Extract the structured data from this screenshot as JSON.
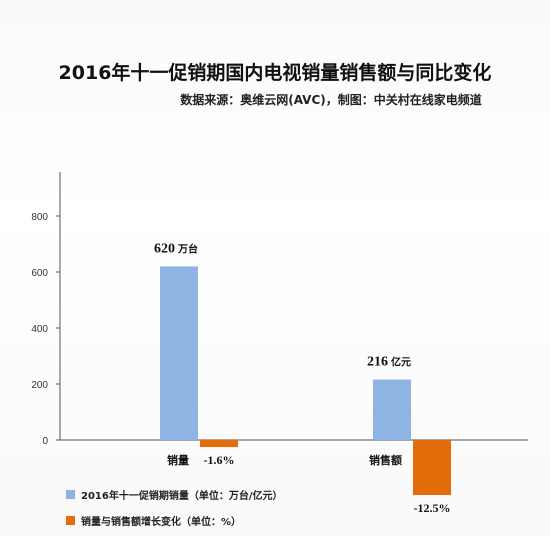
{
  "title": "2016年十一促销期国内电视销量销售额与同比变化",
  "subtitle": "数据来源：奥维云网(AVC)，制图：中关村在线家电频道",
  "chart_data": {
    "type": "bar",
    "categories": [
      "销量",
      "销售额"
    ],
    "ylim": [
      0,
      800
    ],
    "yticks": [
      "0",
      "200",
      "400",
      "600",
      "800"
    ],
    "series": [
      {
        "name": "2016年十一促销期销量（单位：万台/亿元）",
        "color": "#8eb4e3",
        "values": [
          620,
          216
        ],
        "value_labels": [
          "620",
          "216"
        ],
        "unit_labels": [
          "万台",
          "亿元"
        ]
      },
      {
        "name": "销量与销售额增长变化（单位：%）",
        "color": "#e46c0a",
        "values": [
          -1.6,
          -12.5
        ],
        "value_labels": [
          "-1.6%",
          "-12.5%"
        ]
      }
    ]
  }
}
